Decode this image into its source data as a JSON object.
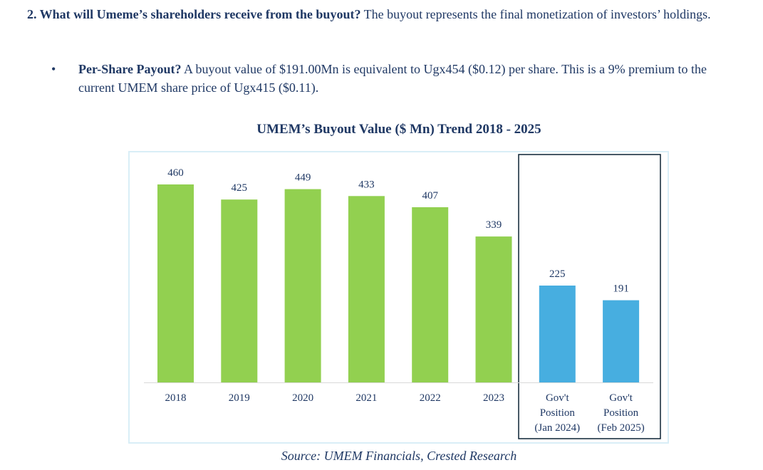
{
  "question": {
    "lead": "2. What will Umeme’s shareholders receive from the buyout?",
    "text": " The buyout represents the final monetization of investors’ holdings."
  },
  "bullet": {
    "symbol": "•",
    "lead": "Per-Share Payout?",
    "text": " A buyout value of $191.00Mn is equivalent to Ugx454 ($0.12) per share.  This is a 9% premium to the current UMEM share price of Ugx415 ($0.11)."
  },
  "chart_data": {
    "type": "bar",
    "title": "UMEM’s Buyout Value ($ Mn) Trend 2018 - 2025",
    "categories": [
      [
        "2018"
      ],
      [
        "2019"
      ],
      [
        "2020"
      ],
      [
        "2021"
      ],
      [
        "2022"
      ],
      [
        "2023"
      ],
      [
        "Gov't",
        "Position",
        "(Jan 2024)"
      ],
      [
        "Gov't",
        "Position",
        "(Feb 2025)"
      ]
    ],
    "values": [
      460,
      425,
      449,
      433,
      407,
      339,
      225,
      191
    ],
    "data_labels": [
      "460",
      "425",
      "449",
      "433",
      "407",
      "339",
      "225",
      "191"
    ],
    "highlighted_categories": [
      6,
      7
    ],
    "ylim": [
      0,
      500
    ],
    "grid": false,
    "legend": "none",
    "colors": {
      "historical": "#92d050",
      "government": "#47aee0",
      "frame": "#d9eef7",
      "highlight_box": "#0b2233",
      "axis": "#d9d9d9",
      "text": "#1f3864"
    }
  },
  "source": "Source: UMEM Financials, Crested Research"
}
